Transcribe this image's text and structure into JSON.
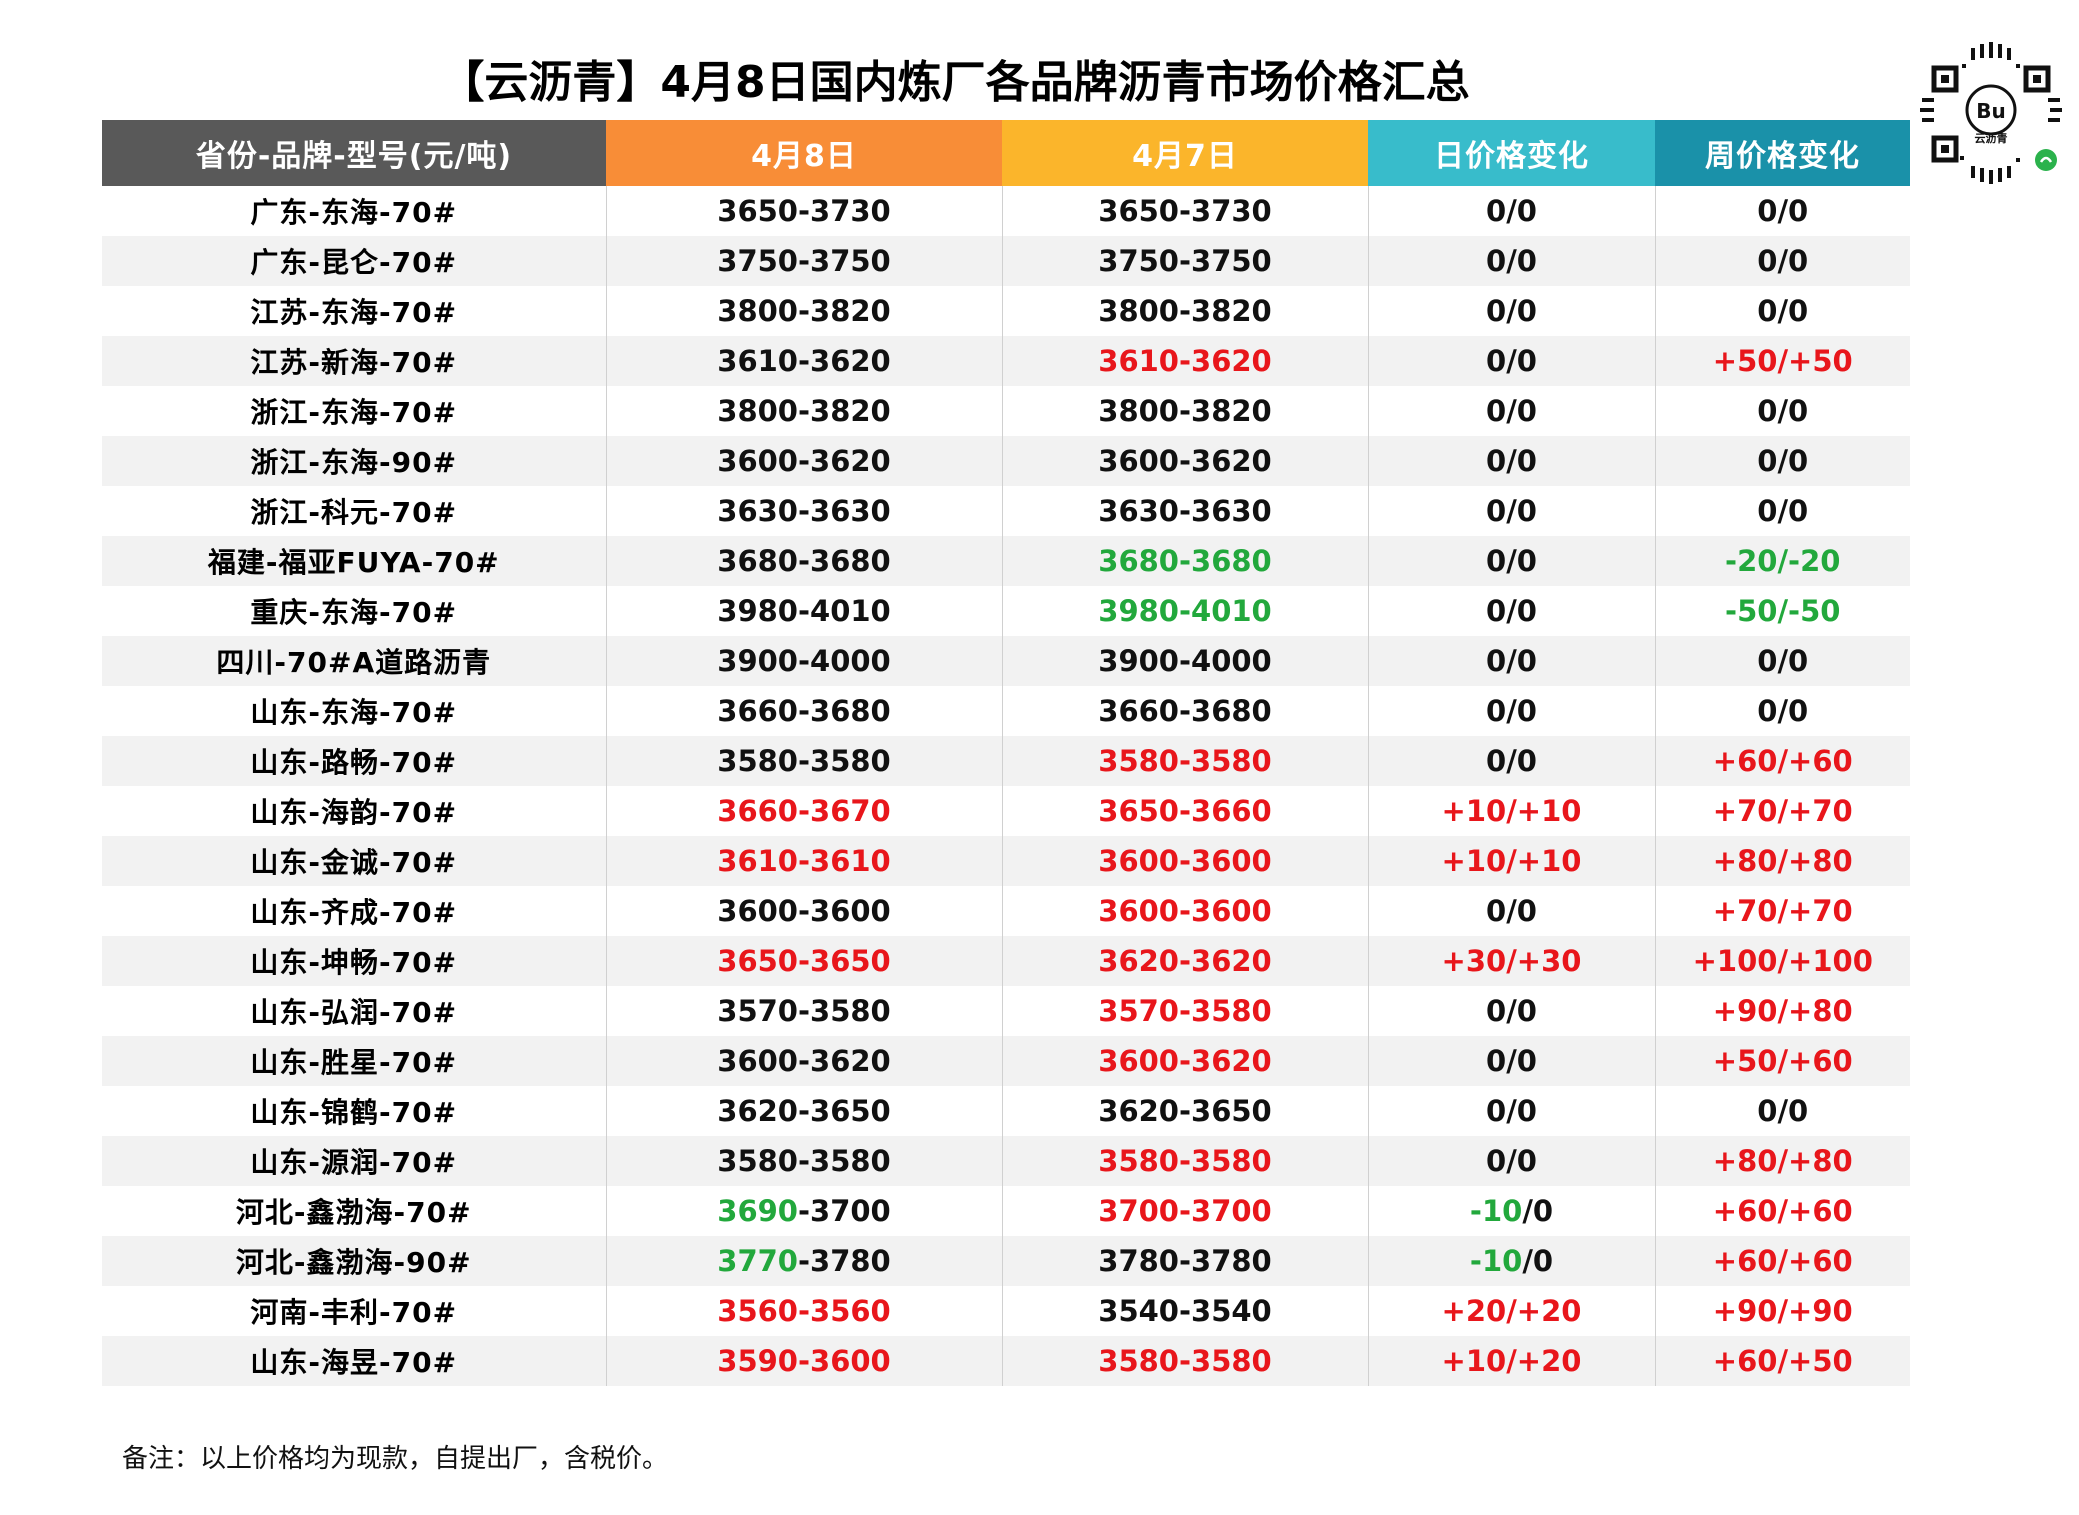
{
  "title": "【云沥青】4月8日国内炼厂各品牌沥青市场价格汇总",
  "qr": {
    "label": "云沥青",
    "logo": "Bu"
  },
  "columns": [
    "省份-品牌-型号(元/吨)",
    "4月8日",
    "4月7日",
    "日价格变化",
    "周价格变化"
  ],
  "colors": {
    "red": "#e8161b",
    "green": "#22a83c",
    "header_gray": "#595959",
    "header_orange": "#f88d37",
    "header_yellow": "#fbb52b",
    "header_teal": "#38bccb",
    "header_dark_teal": "#1a91a9"
  },
  "rows": [
    {
      "name": "广东-东海-70#",
      "apr8": [
        [
          "3650-3730",
          "black"
        ]
      ],
      "apr7": [
        [
          "3650-3730",
          "black"
        ]
      ],
      "day": [
        [
          "0/0",
          "black"
        ]
      ],
      "week": [
        [
          "0/0",
          "black"
        ]
      ]
    },
    {
      "name": "广东-昆仑-70#",
      "apr8": [
        [
          "3750-3750",
          "black"
        ]
      ],
      "apr7": [
        [
          "3750-3750",
          "black"
        ]
      ],
      "day": [
        [
          "0/0",
          "black"
        ]
      ],
      "week": [
        [
          "0/0",
          "black"
        ]
      ]
    },
    {
      "name": "江苏-东海-70#",
      "apr8": [
        [
          "3800-3820",
          "black"
        ]
      ],
      "apr7": [
        [
          "3800-3820",
          "black"
        ]
      ],
      "day": [
        [
          "0/0",
          "black"
        ]
      ],
      "week": [
        [
          "0/0",
          "black"
        ]
      ]
    },
    {
      "name": "江苏-新海-70#",
      "apr8": [
        [
          "3610-3620",
          "black"
        ]
      ],
      "apr7": [
        [
          "3610-3620",
          "red"
        ]
      ],
      "day": [
        [
          "0/0",
          "black"
        ]
      ],
      "week": [
        [
          "+50/+50",
          "red"
        ]
      ]
    },
    {
      "name": "浙江-东海-70#",
      "apr8": [
        [
          "3800-3820",
          "black"
        ]
      ],
      "apr7": [
        [
          "3800-3820",
          "black"
        ]
      ],
      "day": [
        [
          "0/0",
          "black"
        ]
      ],
      "week": [
        [
          "0/0",
          "black"
        ]
      ]
    },
    {
      "name": "浙江-东海-90#",
      "apr8": [
        [
          "3600-3620",
          "black"
        ]
      ],
      "apr7": [
        [
          "3600-3620",
          "black"
        ]
      ],
      "day": [
        [
          "0/0",
          "black"
        ]
      ],
      "week": [
        [
          "0/0",
          "black"
        ]
      ]
    },
    {
      "name": "浙江-科元-70#",
      "apr8": [
        [
          "3630-3630",
          "black"
        ]
      ],
      "apr7": [
        [
          "3630-3630",
          "black"
        ]
      ],
      "day": [
        [
          "0/0",
          "black"
        ]
      ],
      "week": [
        [
          "0/0",
          "black"
        ]
      ]
    },
    {
      "name": "福建-福亚FUYA-70#",
      "apr8": [
        [
          "3680-3680",
          "black"
        ]
      ],
      "apr7": [
        [
          "3680-3680",
          "green"
        ]
      ],
      "day": [
        [
          "0/0",
          "black"
        ]
      ],
      "week": [
        [
          "-20/-20",
          "green"
        ]
      ]
    },
    {
      "name": "重庆-东海-70#",
      "apr8": [
        [
          "3980-4010",
          "black"
        ]
      ],
      "apr7": [
        [
          "3980-4010",
          "green"
        ]
      ],
      "day": [
        [
          "0/0",
          "black"
        ]
      ],
      "week": [
        [
          "-50/-50",
          "green"
        ]
      ]
    },
    {
      "name": "四川-70#A道路沥青",
      "apr8": [
        [
          "3900-4000",
          "black"
        ]
      ],
      "apr7": [
        [
          "3900-4000",
          "black"
        ]
      ],
      "day": [
        [
          "0/0",
          "black"
        ]
      ],
      "week": [
        [
          "0/0",
          "black"
        ]
      ]
    },
    {
      "name": "山东-东海-70#",
      "apr8": [
        [
          "3660-3680",
          "black"
        ]
      ],
      "apr7": [
        [
          "3660-3680",
          "black"
        ]
      ],
      "day": [
        [
          "0/0",
          "black"
        ]
      ],
      "week": [
        [
          "0/0",
          "black"
        ]
      ]
    },
    {
      "name": "山东-路畅-70#",
      "apr8": [
        [
          "3580-3580",
          "black"
        ]
      ],
      "apr7": [
        [
          "3580-3580",
          "red"
        ]
      ],
      "day": [
        [
          "0/0",
          "black"
        ]
      ],
      "week": [
        [
          "+60/+60",
          "red"
        ]
      ]
    },
    {
      "name": "山东-海韵-70#",
      "apr8": [
        [
          "3660-3670",
          "red"
        ]
      ],
      "apr7": [
        [
          "3650-3660",
          "red"
        ]
      ],
      "day": [
        [
          "+10/+10",
          "red"
        ]
      ],
      "week": [
        [
          "+70/+70",
          "red"
        ]
      ]
    },
    {
      "name": "山东-金诚-70#",
      "apr8": [
        [
          "3610-3610",
          "red"
        ]
      ],
      "apr7": [
        [
          "3600-3600",
          "red"
        ]
      ],
      "day": [
        [
          "+10/+10",
          "red"
        ]
      ],
      "week": [
        [
          "+80/+80",
          "red"
        ]
      ]
    },
    {
      "name": "山东-齐成-70#",
      "apr8": [
        [
          "3600-3600",
          "black"
        ]
      ],
      "apr7": [
        [
          "3600-3600",
          "red"
        ]
      ],
      "day": [
        [
          "0/0",
          "black"
        ]
      ],
      "week": [
        [
          "+70/+70",
          "red"
        ]
      ]
    },
    {
      "name": "山东-坤畅-70#",
      "apr8": [
        [
          "3650-3650",
          "red"
        ]
      ],
      "apr7": [
        [
          "3620-3620",
          "red"
        ]
      ],
      "day": [
        [
          "+30/+30",
          "red"
        ]
      ],
      "week": [
        [
          "+100/+100",
          "red"
        ]
      ]
    },
    {
      "name": "山东-弘润-70#",
      "apr8": [
        [
          "3570-3580",
          "black"
        ]
      ],
      "apr7": [
        [
          "3570-3580",
          "red"
        ]
      ],
      "day": [
        [
          "0/0",
          "black"
        ]
      ],
      "week": [
        [
          "+90/+80",
          "red"
        ]
      ]
    },
    {
      "name": "山东-胜星-70#",
      "apr8": [
        [
          "3600-3620",
          "black"
        ]
      ],
      "apr7": [
        [
          "3600-3620",
          "red"
        ]
      ],
      "day": [
        [
          "0/0",
          "black"
        ]
      ],
      "week": [
        [
          "+50/+60",
          "red"
        ]
      ]
    },
    {
      "name": "山东-锦鹤-70#",
      "apr8": [
        [
          "3620-3650",
          "black"
        ]
      ],
      "apr7": [
        [
          "3620-3650",
          "black"
        ]
      ],
      "day": [
        [
          "0/0",
          "black"
        ]
      ],
      "week": [
        [
          "0/0",
          "black"
        ]
      ]
    },
    {
      "name": "山东-源润-70#",
      "apr8": [
        [
          "3580-3580",
          "black"
        ]
      ],
      "apr7": [
        [
          "3580-3580",
          "red"
        ]
      ],
      "day": [
        [
          "0/0",
          "black"
        ]
      ],
      "week": [
        [
          "+80/+80",
          "red"
        ]
      ]
    },
    {
      "name": "河北-鑫渤海-70#",
      "apr8": [
        [
          "3690",
          "green"
        ],
        [
          "-3700",
          "black"
        ]
      ],
      "apr7": [
        [
          "3700-3700",
          "red"
        ]
      ],
      "day": [
        [
          "-10",
          "green"
        ],
        [
          "/0",
          "black"
        ]
      ],
      "week": [
        [
          "+60/+60",
          "red"
        ]
      ]
    },
    {
      "name": "河北-鑫渤海-90#",
      "apr8": [
        [
          "3770",
          "green"
        ],
        [
          "-3780",
          "black"
        ]
      ],
      "apr7": [
        [
          "3780-3780",
          "black"
        ]
      ],
      "day": [
        [
          "-10",
          "green"
        ],
        [
          "/0",
          "black"
        ]
      ],
      "week": [
        [
          "+60/+60",
          "red"
        ]
      ]
    },
    {
      "name": "河南-丰利-70#",
      "apr8": [
        [
          "3560-3560",
          "red"
        ]
      ],
      "apr7": [
        [
          "3540-3540",
          "black"
        ]
      ],
      "day": [
        [
          "+20/+20",
          "red"
        ]
      ],
      "week": [
        [
          "+90/+90",
          "red"
        ]
      ]
    },
    {
      "name": "山东-海昱-70#",
      "apr8": [
        [
          "3590-3600",
          "red"
        ]
      ],
      "apr7": [
        [
          "3580-3580",
          "red"
        ]
      ],
      "day": [
        [
          "+10/+20",
          "red"
        ]
      ],
      "week": [
        [
          "+60/+50",
          "red"
        ]
      ]
    }
  ],
  "note": "备注：以上价格均为现款，自提出厂，含税价。"
}
